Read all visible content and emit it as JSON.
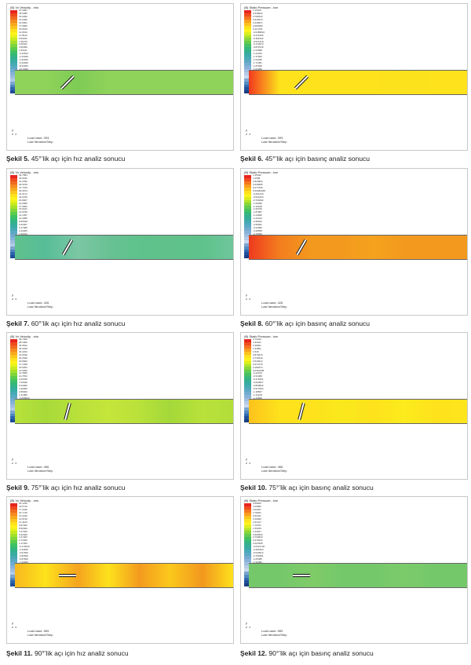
{
  "colors": {
    "velocity": [
      "#e8251f",
      "#ee4a1e",
      "#f06a1f",
      "#f58a1f",
      "#f8a81e",
      "#fbc51d",
      "#fde21c",
      "#fff21b",
      "#e8f21b",
      "#c8ea1f",
      "#a4e02b",
      "#7fd53a",
      "#5ccb4c",
      "#3fc161",
      "#34b879",
      "#33b08f",
      "#38aca3",
      "#46aab4",
      "#5aa9c3",
      "#6fabcf",
      "#86b1d8",
      "#9dbcdf",
      "#b2c9e6",
      "#7aa4cf",
      "#4f85bf",
      "#2e65ab",
      "#1f4f98"
    ],
    "pressure": [
      "#e8251f",
      "#ef4d1f",
      "#f5761f",
      "#fa9d1e",
      "#fdc21c",
      "#ffe11b",
      "#fff21b",
      "#d9ee1f",
      "#b1e32a",
      "#88d63a",
      "#62cb4d",
      "#45c063",
      "#37b77b",
      "#35af91",
      "#3aaba5",
      "#48aab5",
      "#5ca9c4",
      "#72acd0",
      "#89b2d9",
      "#a0bde0",
      "#b5cae7",
      "#c8d7ec",
      "#7aa4cf",
      "#5389c2",
      "#3269af",
      "#20519b",
      "#1a3f86"
    ]
  },
  "panels": [
    {
      "id": "5",
      "kind": "velocity",
      "title": "(B) Vx Velocity - m/s",
      "ticks": [
        "27.6481",
        "25.6485",
        "23.6492",
        "21.6496",
        "19.6501",
        "17.6505",
        "15.6510",
        "13.6514",
        "11.6519",
        "9.65231",
        "7.65276",
        "5.65321",
        "3.65366",
        "1.65411",
        "-0.34544",
        "-2.34499",
        "-4.34454",
        "-6.34409",
        "-8.34364",
        "-10.3432",
        "-12.3427",
        "-14.3423",
        "-16.3418",
        "-18.3414",
        "-20.3409",
        "-22.3405",
        ""
      ],
      "load": "Load case: 393",
      "iter": "Last Iteration/Step",
      "channel": [
        "#8fd35a",
        "#8fd35a",
        "#7ecb55",
        "#8fd35a",
        "#8fd35a",
        "#8fd35a",
        "#8fd35a",
        "#8fd35a"
      ],
      "plates": [
        {
          "angle": 45
        }
      ],
      "caption_label": "Şekil 5.",
      "caption_text": "45°’lik açı için hız analiz sonucu"
    },
    {
      "id": "6",
      "kind": "pressure",
      "title": "(B) Static Pressure - bar",
      "ticks": [
        "1.11466",
        "0.948002",
        "0.781844",
        "0.615670",
        "0.449517",
        "0.283359",
        "0.117203",
        "-0.0489510",
        "-0.215106",
        "-0.381262",
        "-0.547418",
        "-0.713573",
        "-0.879729",
        "-1.04588",
        "-1.21204",
        "-1.37820",
        "-1.54435",
        "-1.71051",
        "-1.87666",
        "-2.04282",
        "-2.20898",
        "-2.37513",
        "-2.54129",
        "-2.70744",
        "-2.87360",
        "-3.03975",
        ""
      ],
      "load": "Load case: 393",
      "iter": "Last Iteration/Step",
      "channel": [
        "#f3381f",
        "#fde21c",
        "#fde21c",
        "#fde21c",
        "#fde21c",
        "#fbe21c",
        "#fde21c",
        "#fde21c"
      ],
      "plates": [
        {
          "angle": 45
        }
      ],
      "caption_label": "Şekil 6.",
      "caption_text": "45°’lik açı için basınç analiz sonucu"
    },
    {
      "id": "7",
      "kind": "velocity",
      "title": "(B) Vx Velocity - m/s",
      "ticks": [
        "34.7584",
        "33.0182",
        "31.2780",
        "29.5378",
        "27.7976",
        "26.0574",
        "24.3172",
        "22.5769",
        "20.8367",
        "19.0965",
        "17.3563",
        "15.6161",
        "13.8759",
        "12.1357",
        "10.3955",
        "8.65528",
        "6.91507",
        "5.17486",
        "3.43465",
        "1.69444",
        "-0.0457698",
        "-1.78598",
        "-3.52619",
        "-5.26640",
        "-7.00661",
        "-8.74682",
        ""
      ],
      "load": "Load case: 426",
      "iter": "Last Iteration/Step",
      "channel": [
        "#5fc28c",
        "#56bd98",
        "#7cc7a4",
        "#69c194",
        "#5fc28c",
        "#60c28a",
        "#5fc28c",
        "#6ec69b"
      ],
      "plates": [
        {
          "angle": 60
        }
      ],
      "caption_label": "Şekil 7.",
      "caption_text": "60°’lik açı için hız analiz sonucu"
    },
    {
      "id": "8",
      "kind": "pressure",
      "title": "(B) Static Pressure - bar",
      "ticks": [
        "1.35432",
        "1.0058",
        "0.824854",
        "0.546685",
        "0.277256",
        "0.00382628",
        "-0.261240",
        "-0.531033",
        "-0.799462",
        "-1.06939",
        "-1.33918",
        "-1.60709",
        "-1.87687",
        "-2.14665",
        "-2.41644",
        "-2.68622",
        "-2.95601",
        "-3.22580",
        "-3.49558",
        "-3.76536",
        "-4.03515",
        "-4.30493",
        "-4.57472",
        "-4.84450",
        "-5.11429",
        "-5.38408",
        ""
      ],
      "load": "Load case: 426",
      "iter": "Last Iteration/Step",
      "channel": [
        "#ee3a1f",
        "#f37e1e",
        "#f39a1e",
        "#f39a1e",
        "#f5a21e",
        "#f39a1e",
        "#f39a1e",
        "#f39a1e"
      ],
      "plates": [
        {
          "angle": 60
        }
      ],
      "caption_label": "Şekil 8.",
      "caption_text": "60°’lik açı için basınç analiz sonucu"
    },
    {
      "id": "9",
      "kind": "velocity",
      "title": "(B) Vx Velocity - m/s",
      "ticks": [
        "29.7400",
        "28.1606",
        "26.5812",
        "25.0018",
        "23.4224",
        "21.8430",
        "20.2636",
        "18.6842",
        "17.1048",
        "15.5254",
        "13.9460",
        "12.3666",
        "10.7872",
        "9.20780",
        "7.62840",
        "6.04900",
        "4.46960",
        "2.89020",
        "1.31080",
        "-0.268600",
        "-1.84800",
        "-3.42740",
        "-5.00680",
        "-6.58620",
        "-8.16560",
        "-9.74500",
        ""
      ],
      "load": "Load case: 466",
      "iter": "Last Iteration/Step",
      "channel": [
        "#b9e13a",
        "#a7da3a",
        "#b9e13a",
        "#c5e53a",
        "#b9e13a",
        "#a4d83a",
        "#b9e13a",
        "#b2de3a"
      ],
      "plates": [
        {
          "angle": 75
        }
      ],
      "caption_label": "Şekil 9.",
      "caption_text": "75°’lik açı için hız analiz sonucu"
    },
    {
      "id": "10",
      "kind": "pressure",
      "title": "(B) Static Pressure - bar",
      "ticks": [
        "3.72222",
        "2.93441",
        "2.38961",
        "1.93861",
        "1.540",
        "0.870215",
        "0.740319",
        "0.542014",
        "0.372776",
        "0.181872",
        "0.0351098",
        "-0.12164",
        "-0.31068",
        "-0.475291",
        "-0.663827",
        "-0.850802",
        "-0.977563",
        "-1.18847",
        "-1.31128",
        "-1.44909",
        "-1.60188",
        "-1.7457",
        "-1.89491",
        "-2.13931",
        "-2.32342",
        "-2.49991",
        ""
      ],
      "load": "Load case: 466",
      "iter": "Last Iteration/Step",
      "channel": [
        "#fdc21c",
        "#fde21c",
        "#fde21c",
        "#fbe81c",
        "#fde21c",
        "#fdeb1c",
        "#fde21c",
        "#fde51c"
      ],
      "plates": [
        {
          "angle": 75
        }
      ],
      "caption_label": "Şekil 10.",
      "caption_text": "75°’lik açı için basınç analiz sonucu"
    },
    {
      "id": "11",
      "kind": "velocity",
      "title": "(B) Vx Velocity - m/s",
      "ticks": [
        "20.1240",
        "18.6740",
        "17.2240",
        "15.7740",
        "14.3240",
        "12.8740",
        "11.4240",
        "9.97400",
        "8.52400",
        "7.07400",
        "5.62400",
        "4.17400",
        "2.72400",
        "1.27400",
        "-0.176000",
        "-1.62600",
        "-3.07600",
        "-4.52600",
        "-5.97600",
        "-7.42600",
        "-8.87600",
        "-10.3260",
        "-11.7760",
        "-13.2260",
        "-14.6760",
        "-16.1260",
        ""
      ],
      "load": "Load case: 569",
      "iter": "Last Iteration/Step",
      "channel": [
        "#f8b81e",
        "#fde21c",
        "#f5a41e",
        "#fde21c",
        "#f39a1e",
        "#fbc81c",
        "#f2971e",
        "#fde21c"
      ],
      "plates": [
        {
          "angle": 90
        }
      ],
      "caption_label": "Şekil 11.",
      "caption_text": "90°’lik açı için hız analiz sonucu"
    },
    {
      "id": "12",
      "kind": "pressure",
      "title": "(B) Static Pressure - bar",
      "ticks": [
        "3.59823",
        "3.29084",
        "3.03267",
        "2.78181",
        "2.52341",
        "2.26920",
        "2.01317",
        "1.75751",
        "1.50184",
        "1.24617",
        "0.990502",
        "0.734833",
        "0.479164",
        "0.223495",
        "-0.0321740",
        "-0.287843",
        "-0.543512",
        "-0.799181",
        "-1.05485",
        "-1.31052",
        "-1.56619",
        "-1.82186",
        "-2.07753",
        "-2.33320",
        "-2.58886",
        "-2.84453",
        ""
      ],
      "load": "Load case: 569",
      "iter": "Last Iteration/Step",
      "channel": [
        "#74c86a",
        "#74c86a",
        "#7fcb68",
        "#74c86a",
        "#74c86a",
        "#7bcb6a",
        "#74c86a",
        "#74c86a"
      ],
      "plates": [
        {
          "angle": 90
        }
      ],
      "caption_label": "Şekil 12.",
      "caption_text": "90°’lik açı için basınç analiz sonucu"
    }
  ]
}
